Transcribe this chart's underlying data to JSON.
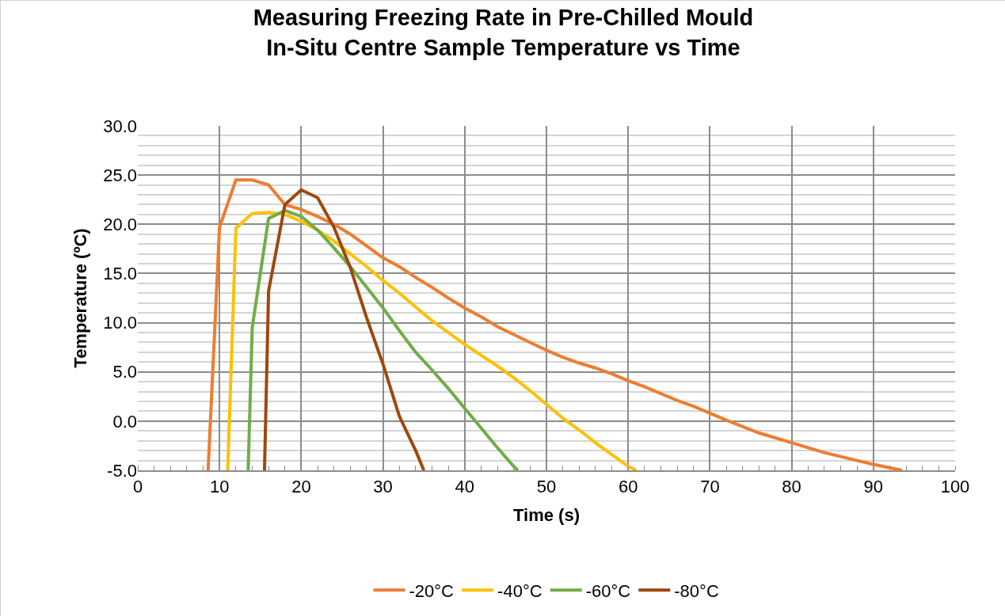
{
  "chart_data": {
    "type": "line",
    "title": "Measuring Freezing Rate in Pre-Chilled Mould\nIn-Situ Centre Sample Temperature vs Time",
    "xlabel": "Time (s)",
    "ylabel": "Temperature (ºC)",
    "xlim": [
      0,
      100
    ],
    "xticks": [
      0,
      10,
      20,
      30,
      40,
      50,
      60,
      70,
      80,
      90,
      100
    ],
    "ylim": [
      -5,
      30
    ],
    "yticks": [
      {
        "value": -5,
        "label": "-5.0"
      },
      {
        "value": 0,
        "label": "0.0"
      },
      {
        "value": 5,
        "label": "5.0"
      },
      {
        "value": 10,
        "label": "10.0"
      },
      {
        "value": 15,
        "label": "15.0"
      },
      {
        "value": 20,
        "label": "20.0"
      },
      {
        "value": 25,
        "label": "25.0"
      },
      {
        "value": 30,
        "label": "30.0"
      }
    ],
    "grid": true,
    "legend": "bottom",
    "marker": "none",
    "line_style": "solid",
    "series": [
      {
        "name": "-20°C",
        "color": "#ed7d31",
        "x": [
          8.6,
          10,
          12,
          14,
          16,
          18,
          20,
          22,
          24,
          26,
          28,
          30,
          32,
          34,
          36,
          38,
          40,
          42,
          44,
          46,
          48,
          50,
          52,
          54,
          56,
          58,
          60,
          62,
          64,
          66,
          68,
          70,
          72,
          76,
          80,
          84,
          88,
          90,
          93.5
        ],
        "values": [
          -5,
          19.7,
          24.5,
          24.5,
          24,
          22,
          21.5,
          20.8,
          20,
          19,
          17.8,
          16.6,
          15.7,
          14.6,
          13.6,
          12.5,
          11.5,
          10.6,
          9.6,
          8.8,
          8,
          7.2,
          6.5,
          5.9,
          5.4,
          4.8,
          4.1,
          3.5,
          2.8,
          2.1,
          1.5,
          0.8,
          0.1,
          -1.2,
          -2.2,
          -3.2,
          -4,
          -4.4,
          -5
        ]
      },
      {
        "name": "-40°C",
        "color": "#ffc000",
        "x": [
          11,
          12,
          14,
          16,
          18,
          20,
          22,
          24,
          26,
          28,
          30,
          32,
          34,
          36,
          38,
          40,
          42,
          44,
          46,
          48,
          50,
          52,
          54,
          56,
          58,
          60,
          61
        ],
        "values": [
          -5,
          19.6,
          21.1,
          21.2,
          21,
          20.3,
          19.4,
          18.3,
          17,
          15.7,
          14.3,
          13,
          11.6,
          10.2,
          9,
          7.8,
          6.7,
          5.6,
          4.4,
          3.1,
          1.7,
          0.3,
          -0.9,
          -2.2,
          -3.4,
          -4.6,
          -5
        ]
      },
      {
        "name": "-60°C",
        "color": "#70ad47",
        "x": [
          13.5,
          14,
          16,
          18,
          20,
          22,
          24,
          26,
          28,
          30,
          32,
          34,
          36,
          38,
          40,
          42,
          44,
          46,
          46.5
        ],
        "values": [
          -5,
          9.5,
          20.6,
          21.4,
          20.8,
          19.4,
          17.6,
          15.7,
          13.6,
          11.5,
          9.2,
          7,
          5.2,
          3.3,
          1.3,
          -0.7,
          -2.7,
          -4.6,
          -5
        ]
      },
      {
        "name": "-80°C",
        "color": "#9e480e",
        "x": [
          15.5,
          16,
          18,
          20,
          22,
          24,
          26,
          28,
          30,
          32,
          34,
          35
        ],
        "values": [
          -5,
          13.2,
          22,
          23.5,
          22.7,
          19.7,
          15.6,
          10.5,
          5.8,
          0.5,
          -3,
          -5
        ]
      }
    ]
  }
}
